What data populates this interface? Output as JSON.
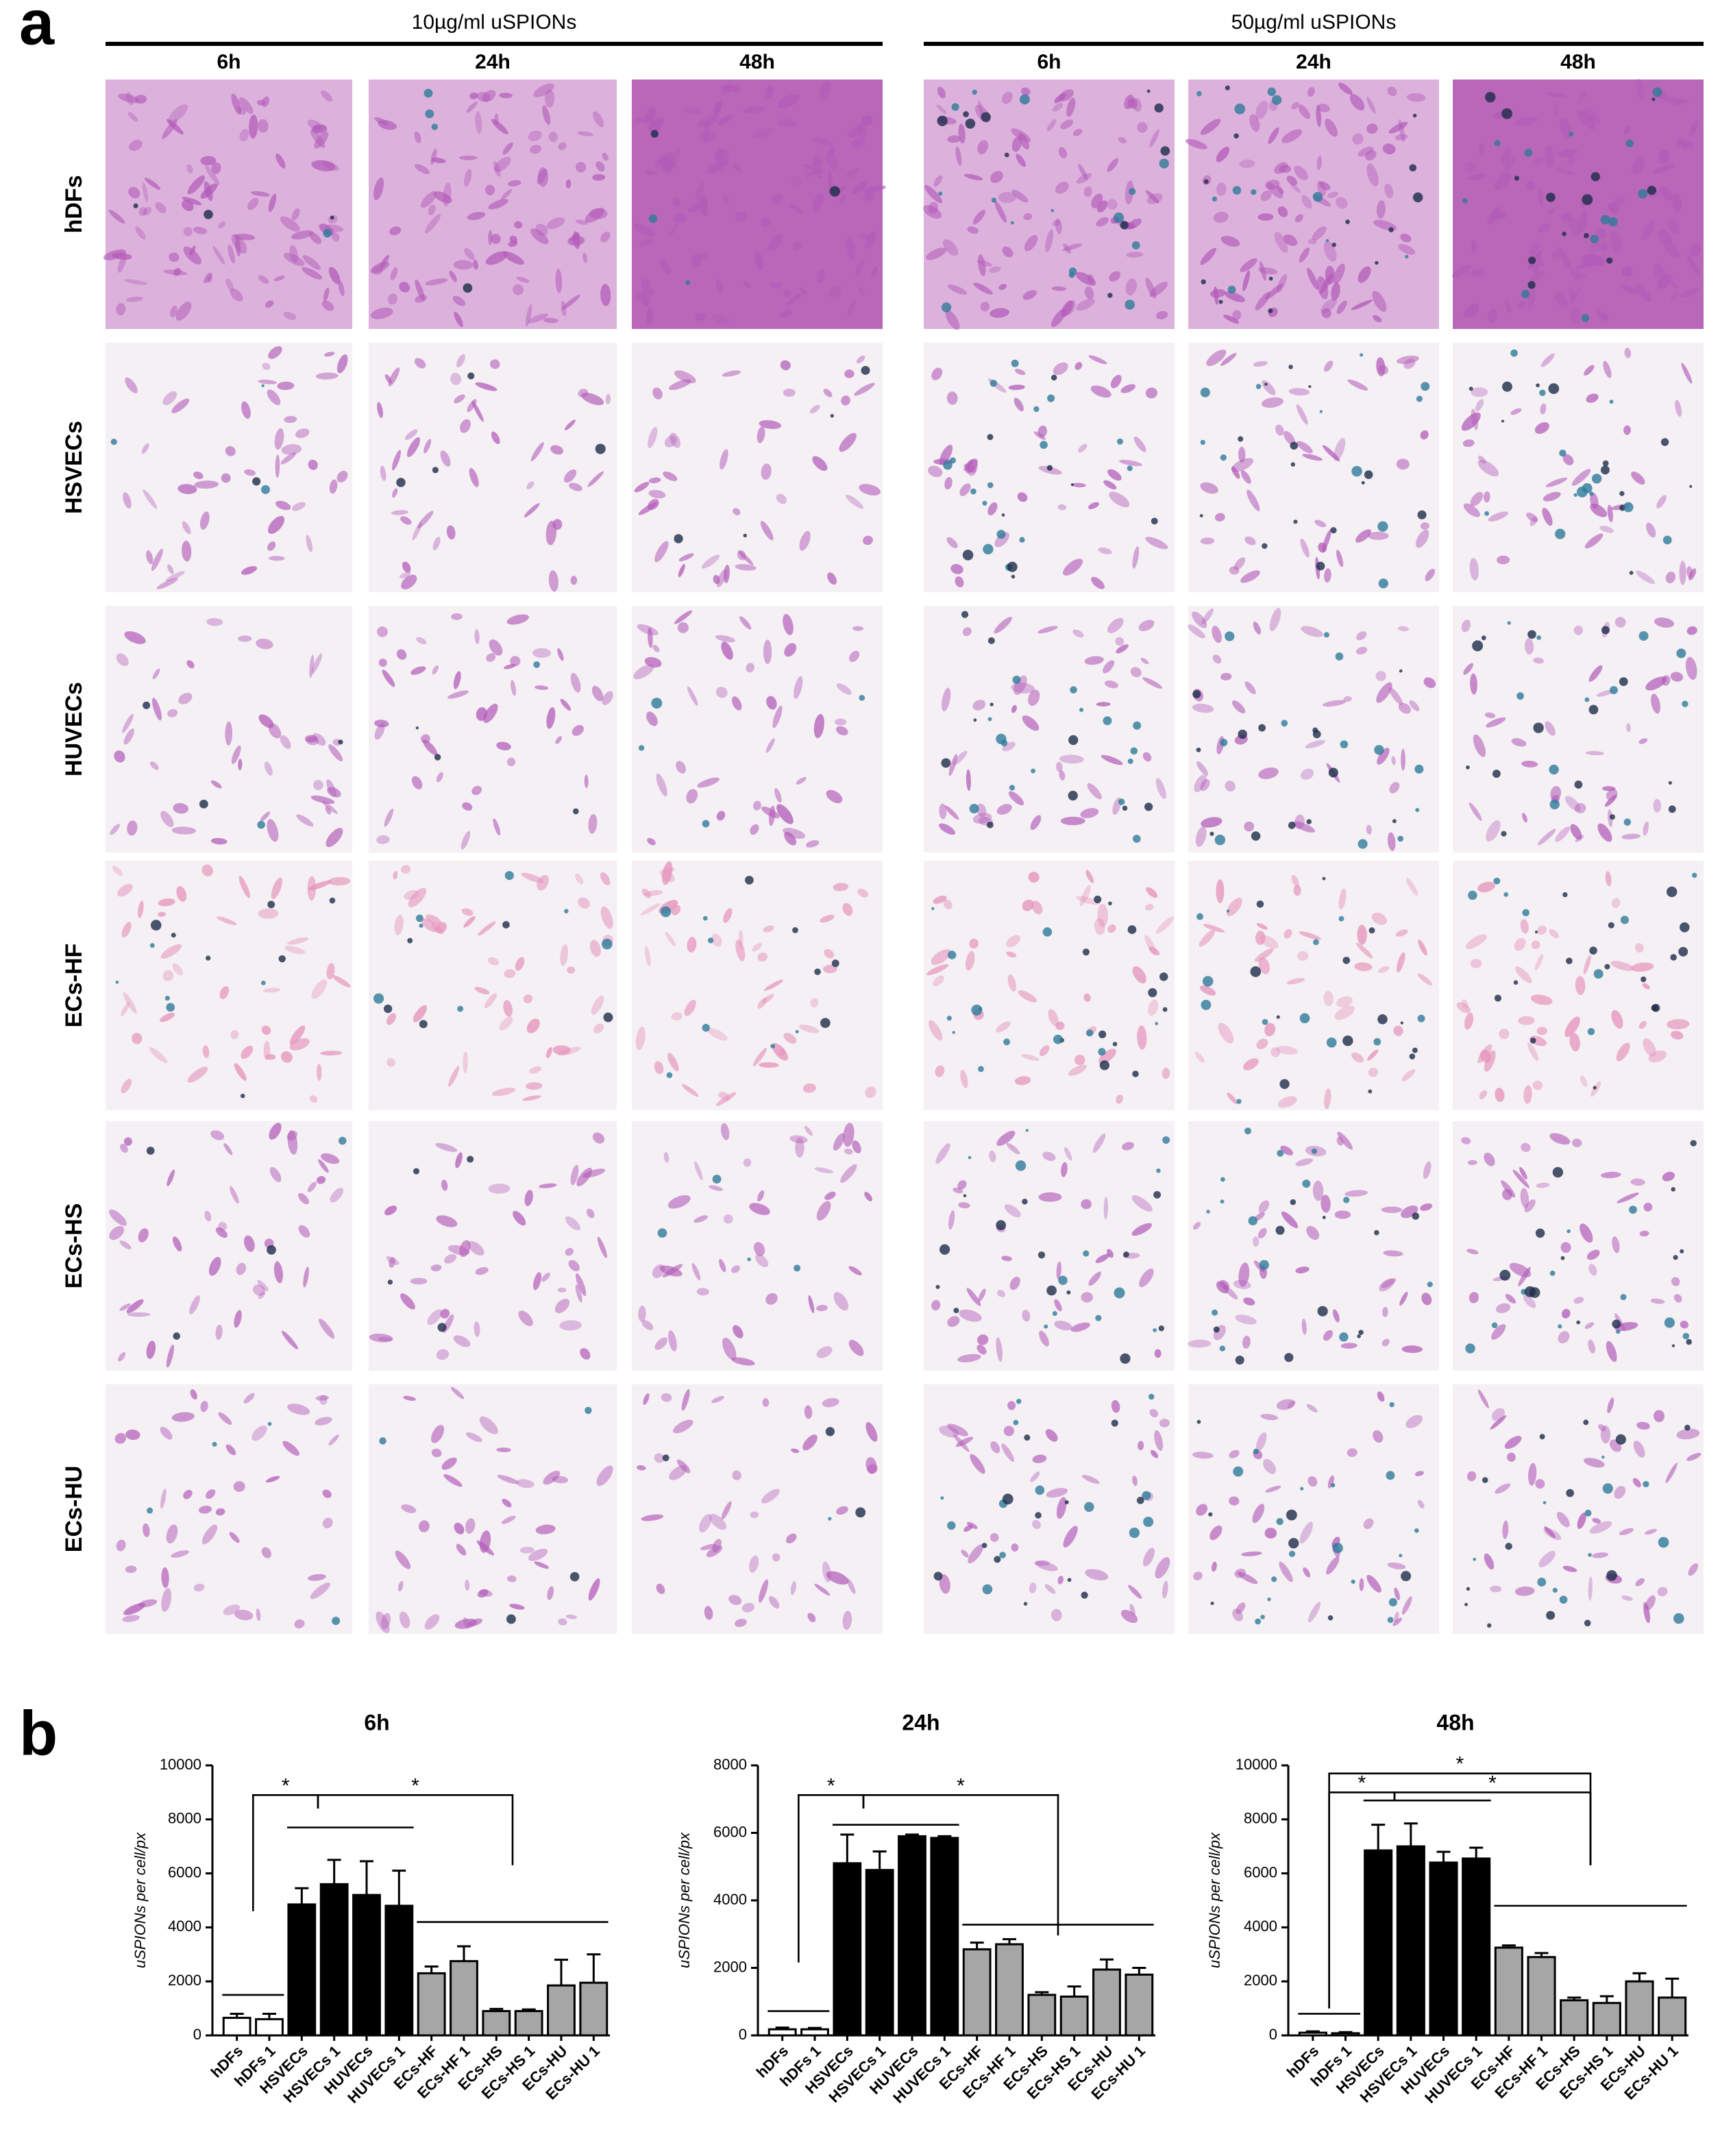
{
  "panel_labels": [
    "a",
    "b"
  ],
  "micrographs": {
    "groups": [
      {
        "label": "10µg/ml uSPIONs",
        "times": [
          "6h",
          "24h",
          "48h"
        ]
      },
      {
        "label": "50µg/ml uSPIONs",
        "times": [
          "6h",
          "24h",
          "48h"
        ]
      }
    ],
    "rows": [
      "hDFs",
      "HSVECs",
      "HUVECs",
      "ECs-HF",
      "ECs-HS",
      "ECs-HU"
    ]
  },
  "chart_data": [
    {
      "type": "bar",
      "title": "6h",
      "y_label": "uSPIONs per cell/px",
      "categories": [
        "hDFs",
        "hDFs 1",
        "HSVECs",
        "HSVECs 1",
        "HUVECs",
        "HUVECs 1",
        "ECs-HF",
        "ECs-HF 1",
        "ECs-HS",
        "ECs-HS 1",
        "ECs-HU",
        "ECs-HU 1"
      ],
      "values": [
        650,
        600,
        4850,
        5600,
        5200,
        4800,
        2300,
        2750,
        900,
        900,
        1850,
        1950
      ],
      "errors": [
        150,
        200,
        600,
        900,
        1250,
        1300,
        250,
        550,
        80,
        60,
        950,
        1050
      ],
      "colors": [
        "#ffffff",
        "#ffffff",
        "#000000",
        "#000000",
        "#000000",
        "#000000",
        "#a6a6a6",
        "#a6a6a6",
        "#a6a6a6",
        "#a6a6a6",
        "#a6a6a6",
        "#a6a6a6"
      ],
      "ylim": [
        0,
        10000
      ],
      "yticks": [
        0,
        2000,
        4000,
        6000,
        8000,
        10000
      ],
      "annotations": [
        "*",
        "*"
      ]
    },
    {
      "type": "bar",
      "title": "24h",
      "y_label": "uSPIONs per cell/px",
      "categories": [
        "hDFs",
        "hDFs 1",
        "HSVECs",
        "HSVECs 1",
        "HUVECs",
        "HUVECs 1",
        "ECs-HF",
        "ECs-HF 1",
        "ECs-HS",
        "ECs-HS 1",
        "ECs-HU",
        "ECs-HU 1"
      ],
      "values": [
        180,
        180,
        5100,
        4900,
        5900,
        5850,
        2550,
        2700,
        1200,
        1150,
        1950,
        1800
      ],
      "errors": [
        50,
        40,
        850,
        550,
        50,
        50,
        200,
        150,
        80,
        300,
        300,
        200
      ],
      "colors": [
        "#ffffff",
        "#ffffff",
        "#000000",
        "#000000",
        "#000000",
        "#000000",
        "#a6a6a6",
        "#a6a6a6",
        "#a6a6a6",
        "#a6a6a6",
        "#a6a6a6",
        "#a6a6a6"
      ],
      "ylim": [
        0,
        8000
      ],
      "yticks": [
        0,
        2000,
        4000,
        6000,
        8000
      ],
      "annotations": [
        "*",
        "*"
      ]
    },
    {
      "type": "bar",
      "title": "48h",
      "y_label": "uSPIONs per cell/px",
      "categories": [
        "hDFs",
        "hDFs 1",
        "HSVECs",
        "HSVECs 1",
        "HUVECs",
        "HUVECs 1",
        "ECs-HF",
        "ECs-HF 1",
        "ECs-HS",
        "ECs-HS 1",
        "ECs-HU",
        "ECs-HU 1"
      ],
      "values": [
        100,
        80,
        6850,
        7000,
        6400,
        6550,
        3250,
        2900,
        1300,
        1200,
        2000,
        1400
      ],
      "errors": [
        50,
        40,
        950,
        850,
        400,
        400,
        80,
        150,
        100,
        250,
        300,
        700
      ],
      "colors": [
        "#ffffff",
        "#ffffff",
        "#000000",
        "#000000",
        "#000000",
        "#000000",
        "#a6a6a6",
        "#a6a6a6",
        "#a6a6a6",
        "#a6a6a6",
        "#a6a6a6",
        "#a6a6a6"
      ],
      "ylim": [
        0,
        10000
      ],
      "yticks": [
        0,
        2000,
        4000,
        6000,
        8000,
        10000
      ],
      "annotations": [
        "*",
        "*",
        "*"
      ]
    }
  ]
}
